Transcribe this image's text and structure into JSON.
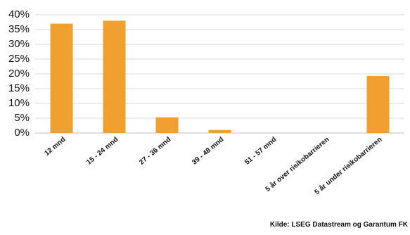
{
  "chart_data": {
    "type": "bar",
    "categories": [
      "12 mnd",
      "15 - 24 mnd",
      "27 - 36 mnd",
      "39 - 48 mnd",
      "51 - 57 mnd",
      "5 år over risikobarrieren",
      "5 år under risikobarrieren"
    ],
    "values": [
      37,
      38,
      5.3,
      1,
      0,
      0,
      19.3
    ],
    "color": "#f0a02e",
    "ylim": [
      0,
      40
    ],
    "yticks": [
      {
        "value": 0,
        "label": "0%"
      },
      {
        "value": 5,
        "label": "5%"
      },
      {
        "value": 10,
        "label": "10%"
      },
      {
        "value": 15,
        "label": "15%"
      },
      {
        "value": 20,
        "label": "20%"
      },
      {
        "value": 25,
        "label": "25%"
      },
      {
        "value": 30,
        "label": "30%"
      },
      {
        "value": 35,
        "label": "35%"
      },
      {
        "value": 40,
        "label": "40%"
      }
    ],
    "grid": true,
    "source": "Kilde: LSEG Datastream og Garantum FK"
  }
}
